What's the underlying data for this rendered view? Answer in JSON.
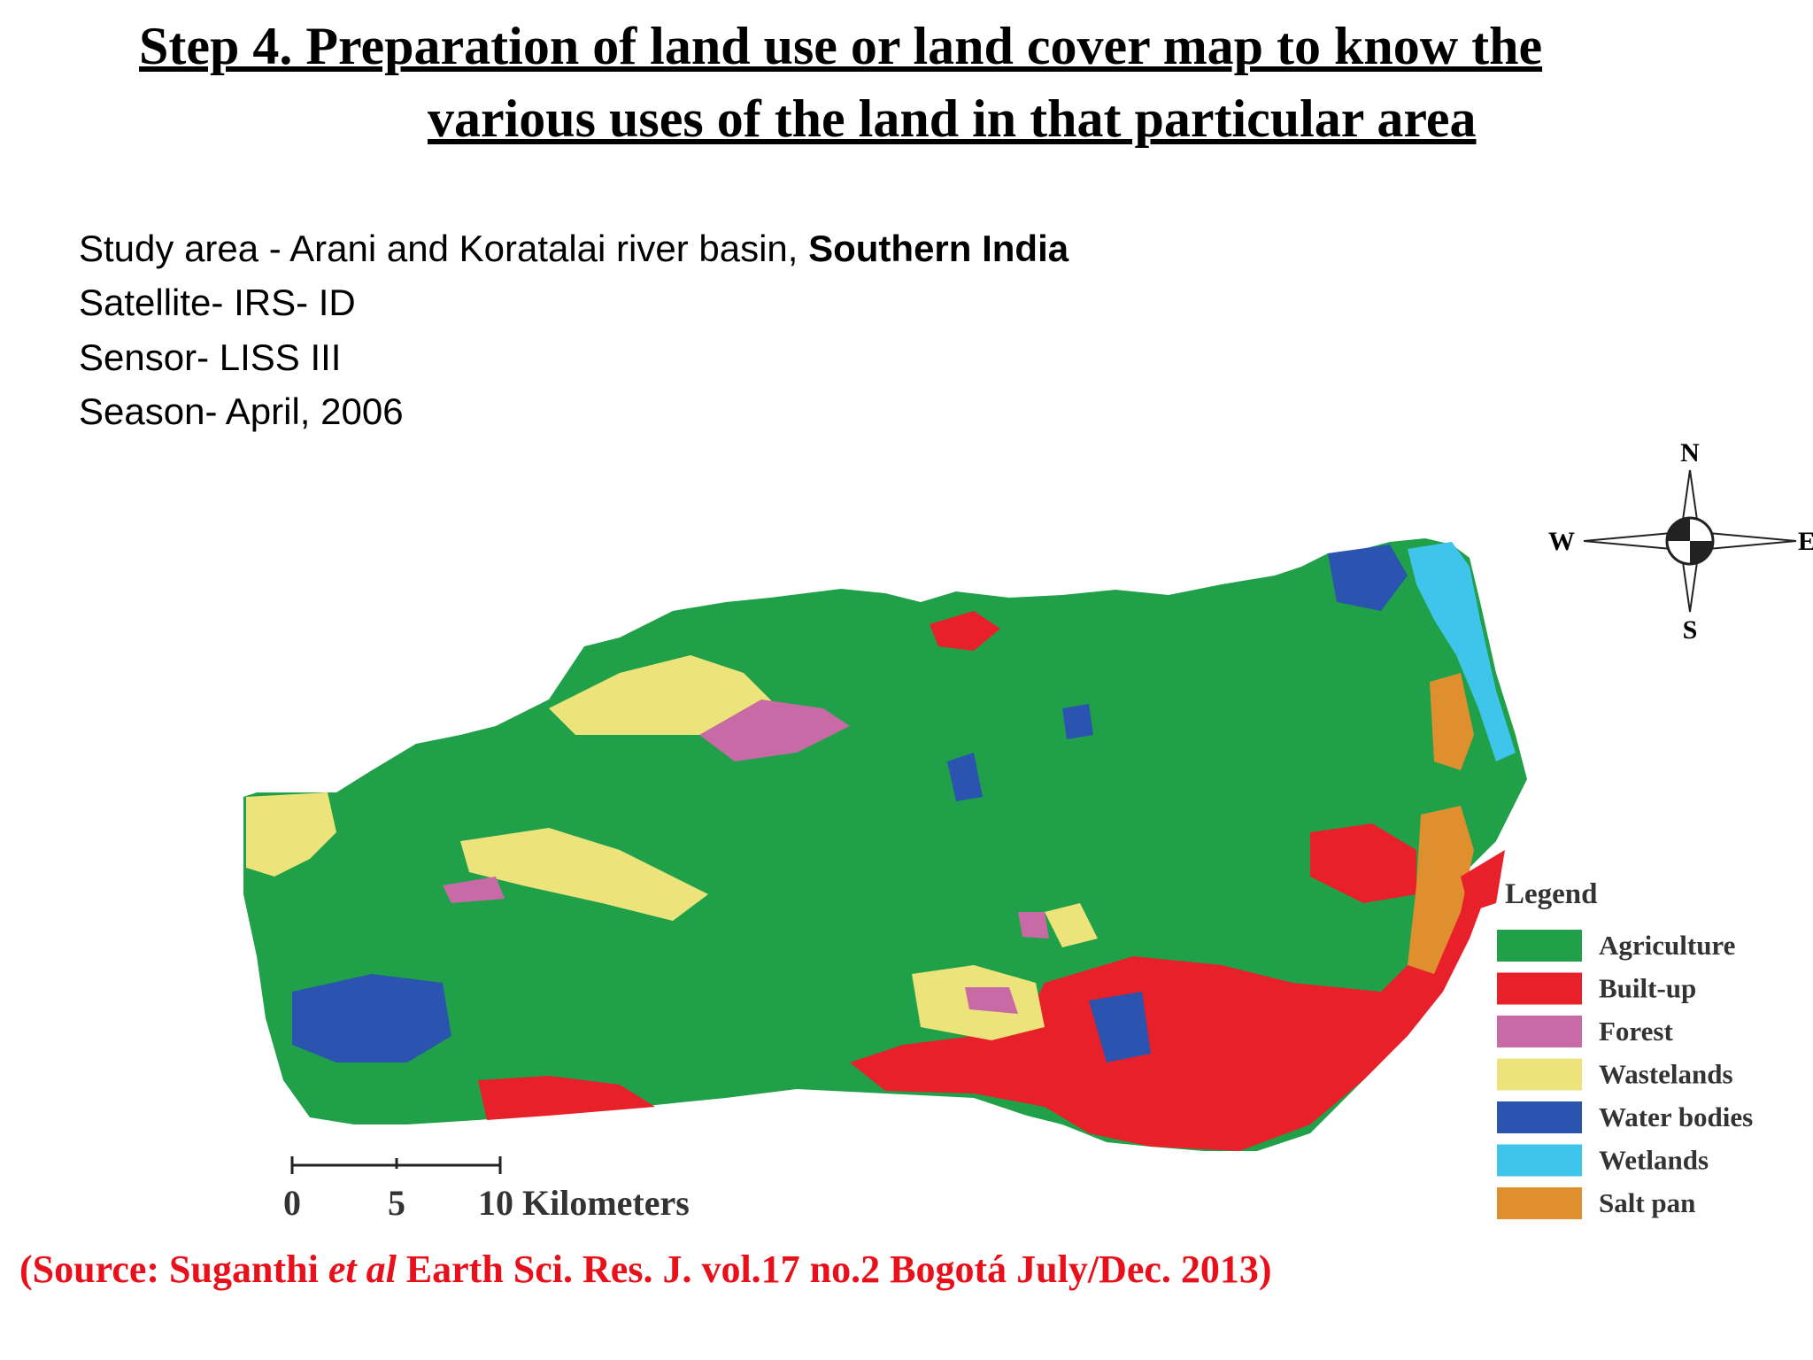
{
  "header": {
    "title_lines": [
      "Step 4. Preparation of land use or land cover map to know the",
      "various uses of the land in that particular area"
    ]
  },
  "info": {
    "study_area": "Study area - Arani and Koratalai river basin, ",
    "study_area_bold": "Southern India",
    "satellite": "Satellite- IRS- ID",
    "sensor": "Sensor- LISS III",
    "season": "Season- April, 2006"
  },
  "map": {
    "compass": {
      "north": "N",
      "west": "W",
      "east": "E",
      "south": "S"
    },
    "scale_labels": [
      "0",
      "5",
      "10 Kilometers"
    ],
    "legend": {
      "title": "Legend",
      "items": [
        {
          "name": "Agriculture",
          "color": "#21a04a"
        },
        {
          "name": "Built-up",
          "color": "#e8202a"
        },
        {
          "name": "Forest",
          "color": "#c76aa6"
        },
        {
          "name": "Wastelands",
          "color": "#ece47a"
        },
        {
          "name": "Water bodies",
          "color": "#2a54b0"
        },
        {
          "name": "Wetlands",
          "color": "#3fc4ec"
        },
        {
          "name": "Salt pan",
          "color": "#e08f2e"
        }
      ]
    }
  },
  "source": {
    "prefix": "(Source: Suganthi ",
    "italic": "et al",
    "suffix": " Earth Sci. Res. J. vol.17 no.2 Bogotá July/Dec. 2013)"
  }
}
